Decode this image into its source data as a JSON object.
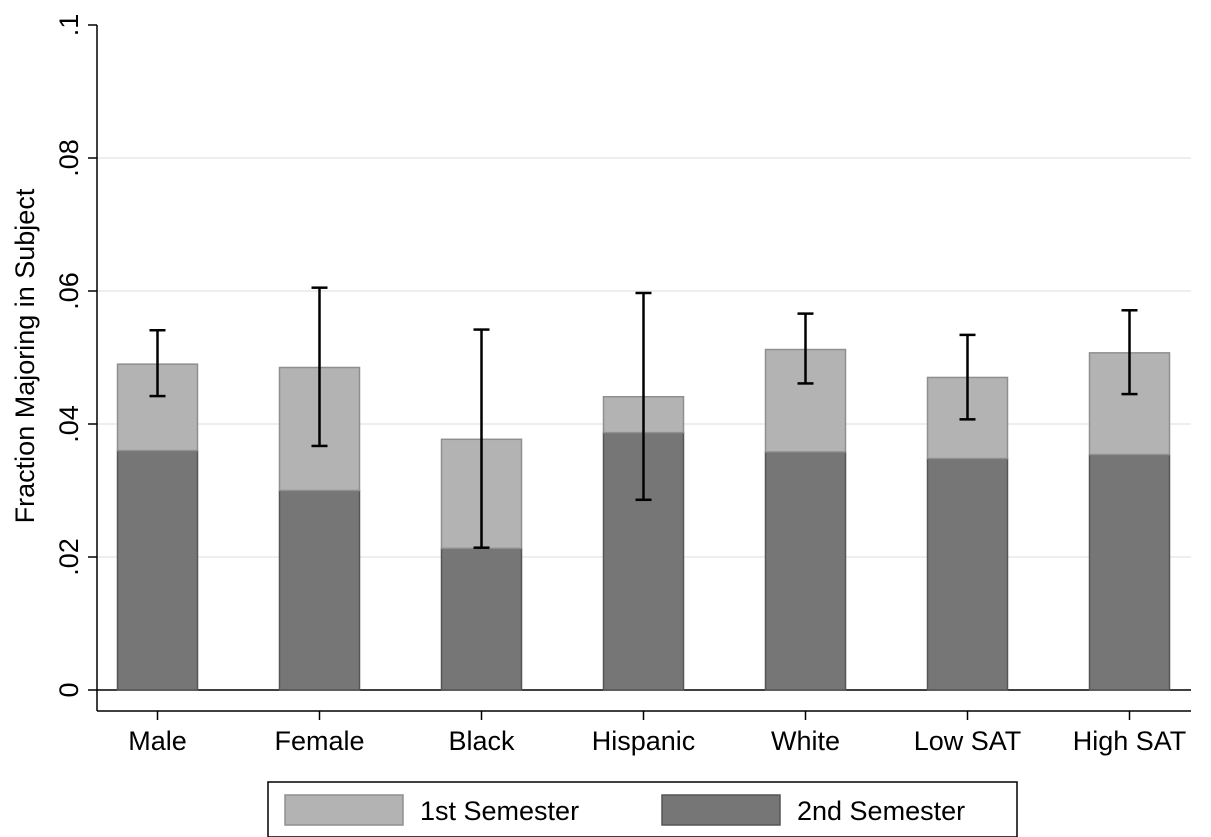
{
  "chart_data": {
    "type": "bar",
    "stacked": true,
    "title": "",
    "xlabel": "",
    "ylabel": "Fraction Majoring in Subject",
    "ylim": [
      0,
      0.1
    ],
    "y_ticks": [
      {
        "value": 0,
        "label": "0"
      },
      {
        "value": 0.02,
        "label": ".02"
      },
      {
        "value": 0.04,
        "label": ".04"
      },
      {
        "value": 0.06,
        "label": ".06"
      },
      {
        "value": 0.08,
        "label": ".08"
      },
      {
        "value": 0.1,
        "label": ".1"
      }
    ],
    "grid": true,
    "legend_position": "bottom",
    "categories": [
      "Male",
      "Female",
      "Black",
      "Hispanic",
      "White",
      "Low SAT",
      "High SAT"
    ],
    "series": [
      {
        "name": "2nd Semester",
        "color": "#767676",
        "values": [
          0.036,
          0.03,
          0.0213,
          0.0387,
          0.0358,
          0.0348,
          0.0354
        ]
      },
      {
        "name": "1st Semester",
        "color": "#b3b3b3",
        "values": [
          0.013,
          0.0185,
          0.0164,
          0.0054,
          0.0154,
          0.0122,
          0.0153
        ]
      }
    ],
    "totals": [
      0.049,
      0.0485,
      0.0377,
      0.0441,
      0.0512,
      0.047,
      0.0507
    ],
    "error_bars": [
      {
        "low": 0.0442,
        "high": 0.0541
      },
      {
        "low": 0.0367,
        "high": 0.0605
      },
      {
        "low": 0.0214,
        "high": 0.0542
      },
      {
        "low": 0.0286,
        "high": 0.0597
      },
      {
        "low": 0.0461,
        "high": 0.0566
      },
      {
        "low": 0.0407,
        "high": 0.0534
      },
      {
        "low": 0.0445,
        "high": 0.0571
      }
    ]
  },
  "legend": {
    "items": [
      {
        "label": "1st Semester",
        "color": "#b3b3b3"
      },
      {
        "label": "2nd Semester",
        "color": "#767676"
      }
    ]
  }
}
